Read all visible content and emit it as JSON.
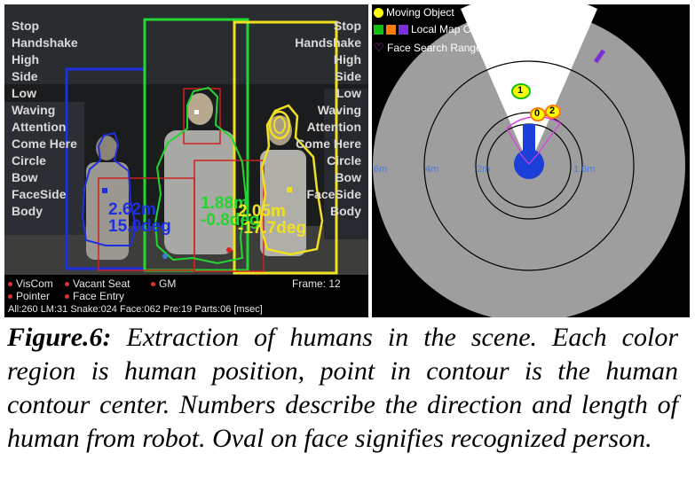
{
  "camera": {
    "modes_left": [
      "Stop",
      "Handshake",
      "High",
      "Side",
      "Low",
      "Waving",
      "Attention",
      "Come Here",
      "Circle",
      "Bow",
      "FaceSide",
      "Body"
    ],
    "modes_right": [
      "Stop",
      "Handshake",
      "High",
      "Side",
      "Low",
      "Waving",
      "Attention",
      "Come Here",
      "Circle",
      "Bow",
      "FaceSide",
      "Body"
    ],
    "persons": [
      {
        "distance": "2.62m",
        "direction": "15.0deg",
        "color": "#1f2fe0"
      },
      {
        "distance": "1.88m",
        "direction": "-0.8deg",
        "color": "#22d830"
      },
      {
        "distance": "2.05m",
        "direction": "-17.7deg",
        "color": "#f0e020"
      }
    ],
    "footer": {
      "viscom": "VisCom",
      "vacant_seat": "Vacant Seat",
      "gm": "GM",
      "frame_label": "Frame:",
      "frame_value": "12",
      "pointer": "Pointer",
      "face_entry": "Face Entry",
      "timing": "All:260  LM:31  Snake:024  Face:062  Pre:19  Parts:06  [msec]"
    }
  },
  "map": {
    "legend": {
      "moving_object": "Moving Object",
      "local_map_object": "Local Map Object",
      "face_search_range": "Face Search Range"
    },
    "range_labels": [
      "6m",
      "4m",
      "2m",
      "1.6m"
    ],
    "objects": [
      "1",
      "0",
      "2"
    ],
    "colors": {
      "yellow": "#ffff00",
      "green": "#10c010",
      "orange": "#ff7a00",
      "purple": "#7a2fd8",
      "magenta": "#e040e0",
      "robot": "#1b3fd8"
    }
  },
  "caption": {
    "label": "Figure.6:",
    "text": " Extraction of humans in the scene. Each color region is human position, point in contour is the human contour center. Numbers describe the direction and length of human from robot. Oval on face signifies recognized person."
  }
}
